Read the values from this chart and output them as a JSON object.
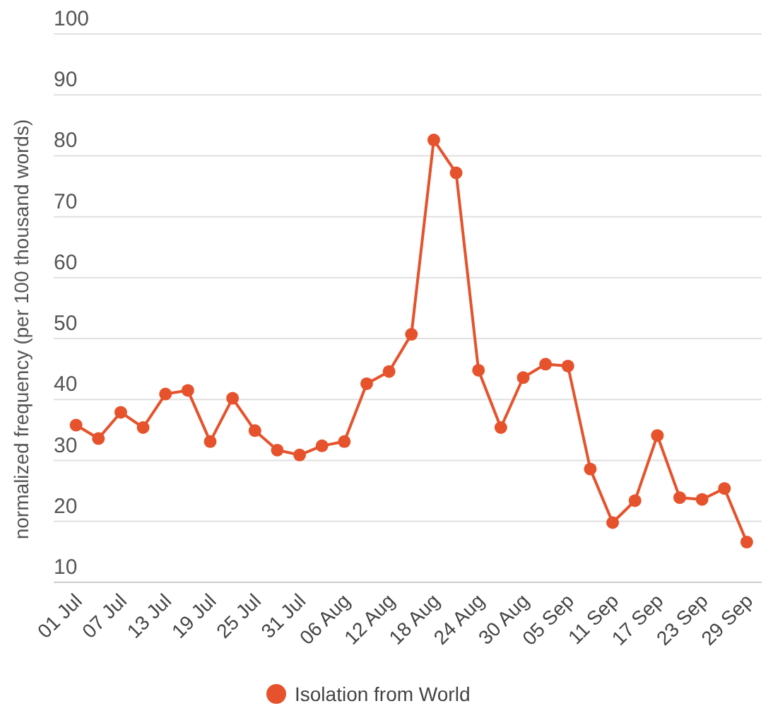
{
  "chart_data": {
    "type": "line",
    "ylabel": "normalized frequency (per 100 thousand words)",
    "x": [
      "--07-01",
      "--07-04",
      "--07-07",
      "--07-10",
      "--07-13",
      "--07-16",
      "--07-19",
      "--07-22",
      "--07-25",
      "--07-28",
      "--07-31",
      "--08-03",
      "--08-06",
      "--08-09",
      "--08-12",
      "--08-15",
      "--08-18",
      "--08-21",
      "--08-24",
      "--08-27",
      "--08-30",
      "--09-02",
      "--09-05",
      "--09-08",
      "--09-11",
      "--09-14",
      "--09-17",
      "--09-20",
      "--09-23",
      "--09-26",
      "--09-29"
    ],
    "series": [
      {
        "name": "Isolation from World",
        "color": "#e6522c",
        "values": [
          35.8,
          33.6,
          37.9,
          35.4,
          40.9,
          41.5,
          33.1,
          40.2,
          34.9,
          31.7,
          30.9,
          32.4,
          33.1,
          42.6,
          44.6,
          50.7,
          82.6,
          77.2,
          44.8,
          35.4,
          43.6,
          45.8,
          45.5,
          28.6,
          19.8,
          23.4,
          34.1,
          23.9,
          23.6,
          25.4,
          16.6
        ]
      }
    ],
    "xlim": [
      "--06-28",
      "--10-01"
    ],
    "xticks": [
      {
        "value": "--07-01",
        "label": "01 Jul"
      },
      {
        "value": "--07-07",
        "label": "07 Jul"
      },
      {
        "value": "--07-13",
        "label": "13 Jul"
      },
      {
        "value": "--07-19",
        "label": "19 Jul"
      },
      {
        "value": "--07-25",
        "label": "25 Jul"
      },
      {
        "value": "--07-31",
        "label": "31 Jul"
      },
      {
        "value": "--08-06",
        "label": "06 Aug"
      },
      {
        "value": "--08-12",
        "label": "12 Aug"
      },
      {
        "value": "--08-18",
        "label": "18 Aug"
      },
      {
        "value": "--08-24",
        "label": "24 Aug"
      },
      {
        "value": "--08-30",
        "label": "30 Aug"
      },
      {
        "value": "--09-05",
        "label": "05 Sep"
      },
      {
        "value": "--09-11",
        "label": "11 Sep"
      },
      {
        "value": "--09-17",
        "label": "17 Sep"
      },
      {
        "value": "--09-23",
        "label": "23 Sep"
      },
      {
        "value": "--09-29",
        "label": "29 Sep"
      }
    ],
    "ylim": [
      10,
      100
    ],
    "yticks": [
      10,
      20,
      30,
      40,
      50,
      60,
      70,
      80,
      90,
      100
    ],
    "grid": "y",
    "legend": "bottom",
    "marker": "circle",
    "line_style": "solid"
  }
}
